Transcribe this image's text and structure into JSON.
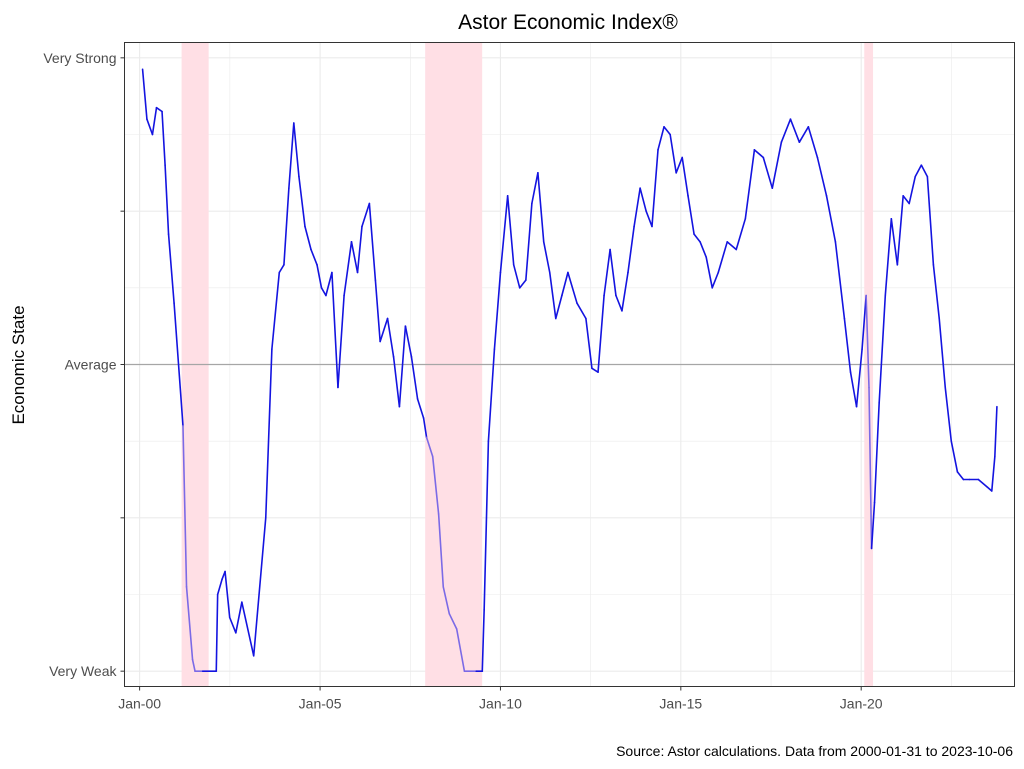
{
  "chart_data": {
    "type": "line",
    "title": "Astor Economic Index®",
    "ylabel": "Economic State",
    "xlabel": "",
    "caption": "Source: Astor calculations. Data from 2000-01-31 to 2023-10-06",
    "xlim": [
      "1999-08-01",
      "2024-04-01"
    ],
    "ylim": [
      -4.2,
      4.2
    ],
    "grid": true,
    "x_ticks": [
      {
        "date": "2000-01-01",
        "label": "Jan-00"
      },
      {
        "date": "2005-01-01",
        "label": "Jan-05"
      },
      {
        "date": "2010-01-01",
        "label": "Jan-10"
      },
      {
        "date": "2015-01-01",
        "label": "Jan-15"
      },
      {
        "date": "2020-01-01",
        "label": "Jan-20"
      }
    ],
    "y_ticks": [
      {
        "value": 4,
        "label": "Very Strong"
      },
      {
        "value": 2,
        "label": ""
      },
      {
        "value": 0,
        "label": "Average"
      },
      {
        "value": -2,
        "label": ""
      },
      {
        "value": -4,
        "label": "Very Weak"
      }
    ],
    "reference_line": {
      "value": 0,
      "color": "#a6a6a6"
    },
    "recessions": [
      {
        "start": "2001-03-01",
        "end": "2001-11-30"
      },
      {
        "start": "2007-12-01",
        "end": "2009-06-30"
      },
      {
        "start": "2020-02-01",
        "end": "2020-04-30"
      }
    ],
    "colors": {
      "line": "#1414e0",
      "line_recession": "#7b6ae6",
      "recession_band": "#ffdfe5",
      "reference": "#a6a6a6",
      "grid": "#ebebeb",
      "panel_border": "#333333"
    },
    "series": [
      {
        "points": [
          [
            "2000-01-31",
            3.85
          ],
          [
            "2000-03-15",
            3.2
          ],
          [
            "2000-05-10",
            3.0
          ],
          [
            "2000-06-20",
            3.35
          ],
          [
            "2000-08-15",
            3.3
          ],
          [
            "2000-09-15",
            2.6
          ],
          [
            "2000-10-20",
            1.7
          ],
          [
            "2000-12-15",
            0.8
          ],
          [
            "2001-02-15",
            -0.3
          ],
          [
            "2001-03-15",
            -0.8
          ],
          [
            "2001-04-20",
            -2.9
          ],
          [
            "2001-06-20",
            -3.85
          ],
          [
            "2001-07-15",
            -4.0
          ],
          [
            "2001-10-01",
            -4.0
          ],
          [
            "2002-02-15",
            -4.0
          ],
          [
            "2002-03-01",
            -3.0
          ],
          [
            "2002-04-15",
            -2.8
          ],
          [
            "2002-05-15",
            -2.7
          ],
          [
            "2002-07-01",
            -3.3
          ],
          [
            "2002-09-01",
            -3.5
          ],
          [
            "2002-11-01",
            -3.1
          ],
          [
            "2003-03-01",
            -3.8
          ],
          [
            "2003-07-01",
            -2.0
          ],
          [
            "2003-09-01",
            0.2
          ],
          [
            "2003-11-15",
            1.2
          ],
          [
            "2004-01-01",
            1.3
          ],
          [
            "2004-02-20",
            2.3
          ],
          [
            "2004-04-10",
            3.15
          ],
          [
            "2004-06-01",
            2.45
          ],
          [
            "2004-08-01",
            1.8
          ],
          [
            "2004-10-01",
            1.5
          ],
          [
            "2004-12-01",
            1.3
          ],
          [
            "2005-01-15",
            1.0
          ],
          [
            "2005-03-01",
            0.9
          ],
          [
            "2005-05-01",
            1.2
          ],
          [
            "2005-07-01",
            -0.3
          ],
          [
            "2005-09-01",
            0.9
          ],
          [
            "2005-11-15",
            1.6
          ],
          [
            "2006-01-15",
            1.2
          ],
          [
            "2006-03-01",
            1.8
          ],
          [
            "2006-05-15",
            2.1
          ],
          [
            "2006-07-15",
            1.1
          ],
          [
            "2006-09-01",
            0.3
          ],
          [
            "2006-11-15",
            0.6
          ],
          [
            "2007-01-15",
            0.1
          ],
          [
            "2007-03-15",
            -0.55
          ],
          [
            "2007-05-15",
            0.5
          ],
          [
            "2007-07-15",
            0.1
          ],
          [
            "2007-09-15",
            -0.45
          ],
          [
            "2007-11-15",
            -0.7
          ],
          [
            "2007-12-15",
            -0.95
          ],
          [
            "2008-02-15",
            -1.2
          ],
          [
            "2008-04-15",
            -1.95
          ],
          [
            "2008-06-01",
            -2.9
          ],
          [
            "2008-08-01",
            -3.25
          ],
          [
            "2008-10-15",
            -3.45
          ],
          [
            "2009-01-01",
            -4.0
          ],
          [
            "2009-05-01",
            -4.0
          ],
          [
            "2009-07-01",
            -4.0
          ],
          [
            "2009-07-20",
            -3.2
          ],
          [
            "2009-09-01",
            -1.0
          ],
          [
            "2009-11-01",
            0.2
          ],
          [
            "2010-01-01",
            1.2
          ],
          [
            "2010-03-15",
            2.2
          ],
          [
            "2010-05-15",
            1.3
          ],
          [
            "2010-07-15",
            1.0
          ],
          [
            "2010-09-15",
            1.1
          ],
          [
            "2010-11-15",
            2.1
          ],
          [
            "2011-01-15",
            2.5
          ],
          [
            "2011-03-15",
            1.6
          ],
          [
            "2011-05-15",
            1.2
          ],
          [
            "2011-07-15",
            0.6
          ],
          [
            "2011-09-15",
            0.9
          ],
          [
            "2011-11-15",
            1.2
          ],
          [
            "2012-02-15",
            0.8
          ],
          [
            "2012-05-15",
            0.6
          ],
          [
            "2012-07-15",
            -0.05
          ],
          [
            "2012-09-15",
            -0.1
          ],
          [
            "2012-11-15",
            0.9
          ],
          [
            "2013-01-15",
            1.5
          ],
          [
            "2013-03-15",
            0.9
          ],
          [
            "2013-05-15",
            0.7
          ],
          [
            "2013-07-15",
            1.2
          ],
          [
            "2013-09-15",
            1.8
          ],
          [
            "2013-11-15",
            2.3
          ],
          [
            "2014-01-15",
            2.0
          ],
          [
            "2014-03-15",
            1.8
          ],
          [
            "2014-05-15",
            2.8
          ],
          [
            "2014-07-15",
            3.1
          ],
          [
            "2014-09-15",
            3.0
          ],
          [
            "2014-11-15",
            2.5
          ],
          [
            "2015-01-15",
            2.7
          ],
          [
            "2015-03-15",
            2.2
          ],
          [
            "2015-05-15",
            1.7
          ],
          [
            "2015-07-15",
            1.6
          ],
          [
            "2015-09-15",
            1.4
          ],
          [
            "2015-11-15",
            1.0
          ],
          [
            "2016-01-15",
            1.2
          ],
          [
            "2016-04-15",
            1.6
          ],
          [
            "2016-07-15",
            1.5
          ],
          [
            "2016-10-15",
            1.9
          ],
          [
            "2017-01-15",
            2.8
          ],
          [
            "2017-04-15",
            2.7
          ],
          [
            "2017-07-15",
            2.3
          ],
          [
            "2017-10-15",
            2.9
          ],
          [
            "2018-01-15",
            3.2
          ],
          [
            "2018-04-15",
            2.9
          ],
          [
            "2018-07-15",
            3.1
          ],
          [
            "2018-10-15",
            2.7
          ],
          [
            "2019-01-15",
            2.2
          ],
          [
            "2019-04-15",
            1.6
          ],
          [
            "2019-07-15",
            0.6
          ],
          [
            "2019-09-15",
            -0.1
          ],
          [
            "2019-11-15",
            -0.55
          ],
          [
            "2020-01-10",
            0.2
          ],
          [
            "2020-02-20",
            0.9
          ],
          [
            "2020-03-20",
            -0.3
          ],
          [
            "2020-04-15",
            -2.4
          ],
          [
            "2020-05-15",
            -1.8
          ],
          [
            "2020-07-01",
            -0.5
          ],
          [
            "2020-09-01",
            0.9
          ],
          [
            "2020-11-01",
            1.9
          ],
          [
            "2021-01-01",
            1.3
          ],
          [
            "2021-03-01",
            2.2
          ],
          [
            "2021-05-01",
            2.1
          ],
          [
            "2021-07-01",
            2.45
          ],
          [
            "2021-09-01",
            2.6
          ],
          [
            "2021-11-01",
            2.45
          ],
          [
            "2022-01-01",
            1.3
          ],
          [
            "2022-03-01",
            0.6
          ],
          [
            "2022-05-01",
            -0.3
          ],
          [
            "2022-07-01",
            -1.0
          ],
          [
            "2022-09-01",
            -1.4
          ],
          [
            "2022-11-01",
            -1.5
          ],
          [
            "2023-01-01",
            -1.5
          ],
          [
            "2023-04-01",
            -1.5
          ],
          [
            "2023-07-01",
            -1.6
          ],
          [
            "2023-08-15",
            -1.65
          ],
          [
            "2023-09-15",
            -1.2
          ],
          [
            "2023-10-06",
            -0.55
          ]
        ]
      }
    ]
  }
}
